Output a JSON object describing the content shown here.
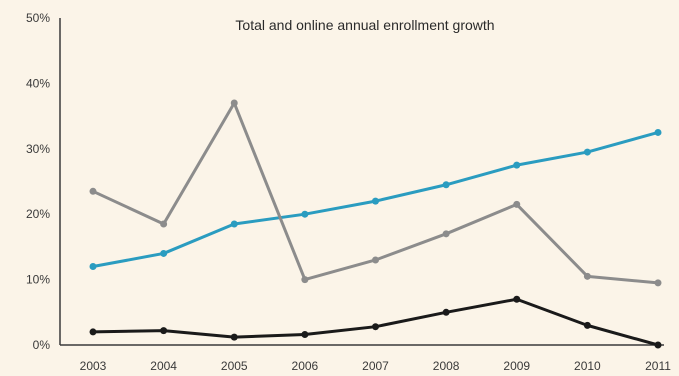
{
  "chart_data": {
    "type": "line",
    "title": "Total and online annual enrollment growth",
    "xlabel": "",
    "ylabel": "",
    "x": [
      "2003",
      "2004",
      "2005",
      "2006",
      "2007",
      "2008",
      "2009",
      "2010",
      "2011"
    ],
    "y_ticks": [
      "0%",
      "10%",
      "20%",
      "30%",
      "40%",
      "50%"
    ],
    "ylim": [
      0,
      50
    ],
    "grid": false,
    "legend": "none",
    "series": [
      {
        "color": "#2a9cc0",
        "values": [
          12,
          14,
          18.5,
          20,
          22,
          24.5,
          27.5,
          29.5,
          32.5
        ]
      },
      {
        "color": "#8c8c8c",
        "values": [
          23.5,
          18.5,
          37,
          10,
          13,
          17,
          21.5,
          10.5,
          9.5
        ]
      },
      {
        "color": "#1a1a1a",
        "values": [
          2,
          2.2,
          1.2,
          1.6,
          2.8,
          5,
          7,
          3,
          0
        ]
      }
    ]
  }
}
